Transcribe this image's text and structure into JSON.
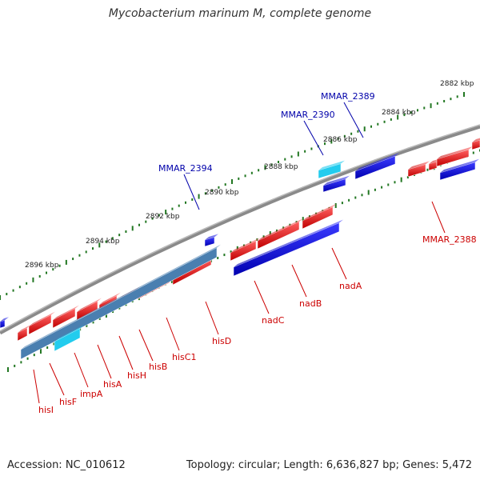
{
  "title": "Mycobacterium marinum M, complete genome",
  "footer": {
    "accession": "Accession: NC_010612",
    "summary": "Topology: circular; Length: 6,636,827 bp; Genes: 5,472"
  },
  "colors": {
    "forward_gene": "#e00000",
    "reverse_gene": "#0000dd",
    "operon": "#4a7fb0",
    "highlight": "#22ccee",
    "backbone": "#777777",
    "ticks": "#227722",
    "label_forward": "#cc0000",
    "label_reverse": "#0000aa"
  },
  "ruler_labels": [
    "2882 kbp",
    "2884 kbp",
    "2886 kbp",
    "2888 kbp",
    "2890 kbp",
    "2892 kbp",
    "2894 kbp",
    "2896 kbp"
  ],
  "gene_labels_top": [
    "MMAR_2389",
    "MMAR_2390",
    "MMAR_2394"
  ],
  "gene_labels_bottom": [
    "MMAR_2388",
    "nadA",
    "nadB",
    "nadC",
    "hisD",
    "hisC1",
    "hisB",
    "hisH",
    "hisA",
    "impA",
    "hisF",
    "hisI"
  ]
}
